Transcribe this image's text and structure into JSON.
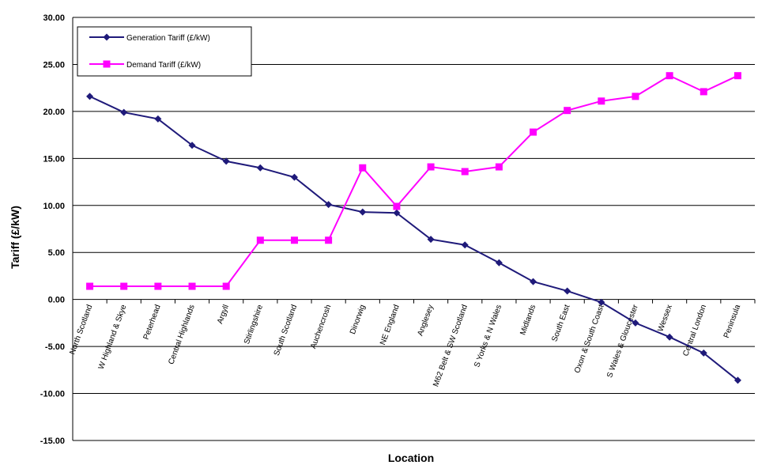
{
  "chart_data": {
    "type": "line",
    "title": "",
    "xlabel": "Location",
    "ylabel": "Tariff (£/kW)",
    "ylim": [
      -15,
      30
    ],
    "y_ticks": [
      "30.00",
      "25.00",
      "20.00",
      "15.00",
      "10.00",
      "5.00",
      "0.00",
      "-5.00",
      "-10.00",
      "-15.00"
    ],
    "grid": "horizontal",
    "legend_position": "top-left",
    "categories": [
      "North Scotland",
      "W Highland & Skye",
      "Peterhead",
      "Central Highlands",
      "Argyll",
      "Stirlingshire",
      "South Scotland",
      "Auchencrosh",
      "Dinorwig",
      "NE England",
      "Anglesey",
      "M62 Belt & SW Scotland",
      "S Yorks & N Wales",
      "Midlands",
      "South East",
      "Oxon & South Coast",
      "S Wales & Gloucester",
      "Wessex",
      "Central London",
      "Peninsula"
    ],
    "series": [
      {
        "name": "Generation Tariff (£/kW)",
        "color": "#1f1a7a",
        "marker": "diamond",
        "values": [
          21.6,
          19.9,
          19.2,
          16.4,
          14.7,
          14.0,
          13.0,
          10.1,
          9.3,
          9.2,
          6.4,
          5.8,
          3.9,
          1.9,
          0.9,
          -0.3,
          -2.5,
          -4.0,
          -5.7,
          -8.6
        ]
      },
      {
        "name": "Demand Tariff (£/kW)",
        "color": "#ff00ff",
        "marker": "square",
        "values": [
          1.4,
          1.4,
          1.4,
          1.4,
          1.4,
          6.3,
          6.3,
          6.3,
          14.0,
          9.9,
          14.1,
          13.6,
          14.1,
          17.8,
          20.1,
          21.1,
          21.6,
          23.8,
          22.1,
          23.8
        ]
      }
    ]
  }
}
